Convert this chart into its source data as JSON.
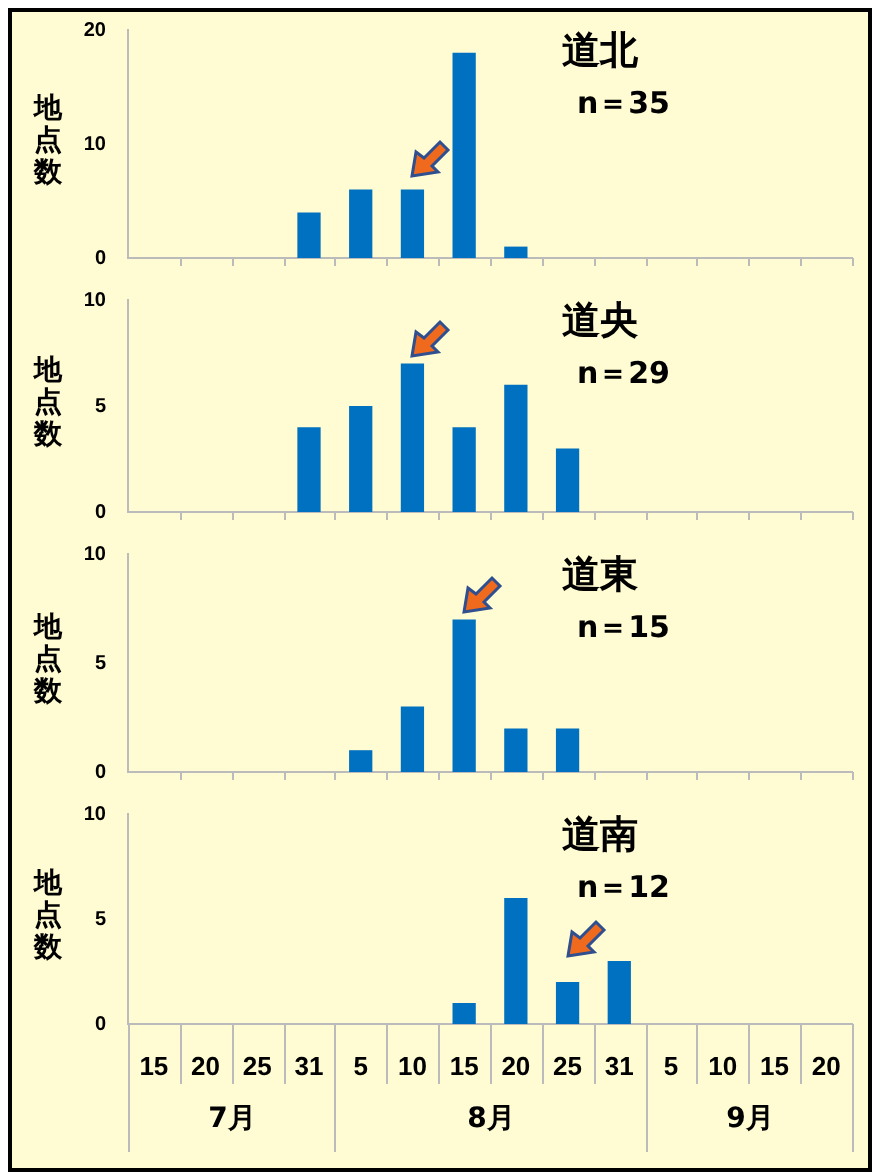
{
  "chart_data": [
    {
      "type": "bar",
      "title": "道北",
      "annotations": [
        "n＝35"
      ],
      "ylabel": "地点数",
      "color": "#0070c0",
      "categories": [
        "15",
        "20",
        "25",
        "31",
        "5",
        "10",
        "15",
        "20",
        "25",
        "31",
        "5",
        "10",
        "15",
        "20"
      ],
      "values": [
        0,
        0,
        0,
        4,
        6,
        6,
        18,
        1,
        0,
        0,
        0,
        0,
        0,
        0
      ],
      "ylim": [
        0,
        20
      ],
      "yticks": [
        0,
        10,
        20
      ],
      "tick_labels": "y"
    },
    {
      "type": "bar",
      "title": "道央",
      "annotations": [
        "n＝29"
      ],
      "ylabel": "地点数",
      "color": "#0070c0",
      "categories": [
        "15",
        "20",
        "25",
        "31",
        "5",
        "10",
        "15",
        "20",
        "25",
        "31",
        "5",
        "10",
        "15",
        "20"
      ],
      "values": [
        0,
        0,
        0,
        4,
        5,
        7,
        4,
        6,
        3,
        0,
        0,
        0,
        0,
        0
      ],
      "ylim": [
        0,
        10
      ],
      "yticks": [
        0,
        5,
        10
      ],
      "tick_labels": "y"
    },
    {
      "type": "bar",
      "title": "道東",
      "annotations": [
        "n＝15"
      ],
      "ylabel": "地点数",
      "color": "#0070c0",
      "categories": [
        "15",
        "20",
        "25",
        "31",
        "5",
        "10",
        "15",
        "20",
        "25",
        "31",
        "5",
        "10",
        "15",
        "20"
      ],
      "values": [
        0,
        0,
        0,
        0,
        1,
        3,
        7,
        2,
        2,
        0,
        0,
        0,
        0,
        0
      ],
      "ylim": [
        0,
        10
      ],
      "yticks": [
        0,
        5,
        10
      ],
      "tick_labels": "y"
    },
    {
      "type": "bar",
      "title": "道南",
      "annotations": [
        "n＝12",
        "7月",
        "8月",
        "9月"
      ],
      "ylabel": "地点数",
      "color": "#0070c0",
      "categories": [
        "15",
        "20",
        "25",
        "31",
        "5",
        "10",
        "15",
        "20",
        "25",
        "31",
        "5",
        "10",
        "15",
        "20"
      ],
      "values": [
        0,
        0,
        0,
        0,
        0,
        0,
        1,
        6,
        2,
        3,
        0,
        0,
        0,
        0
      ],
      "ylim": [
        0,
        10
      ],
      "yticks": [
        0,
        5,
        10
      ]
    }
  ]
}
